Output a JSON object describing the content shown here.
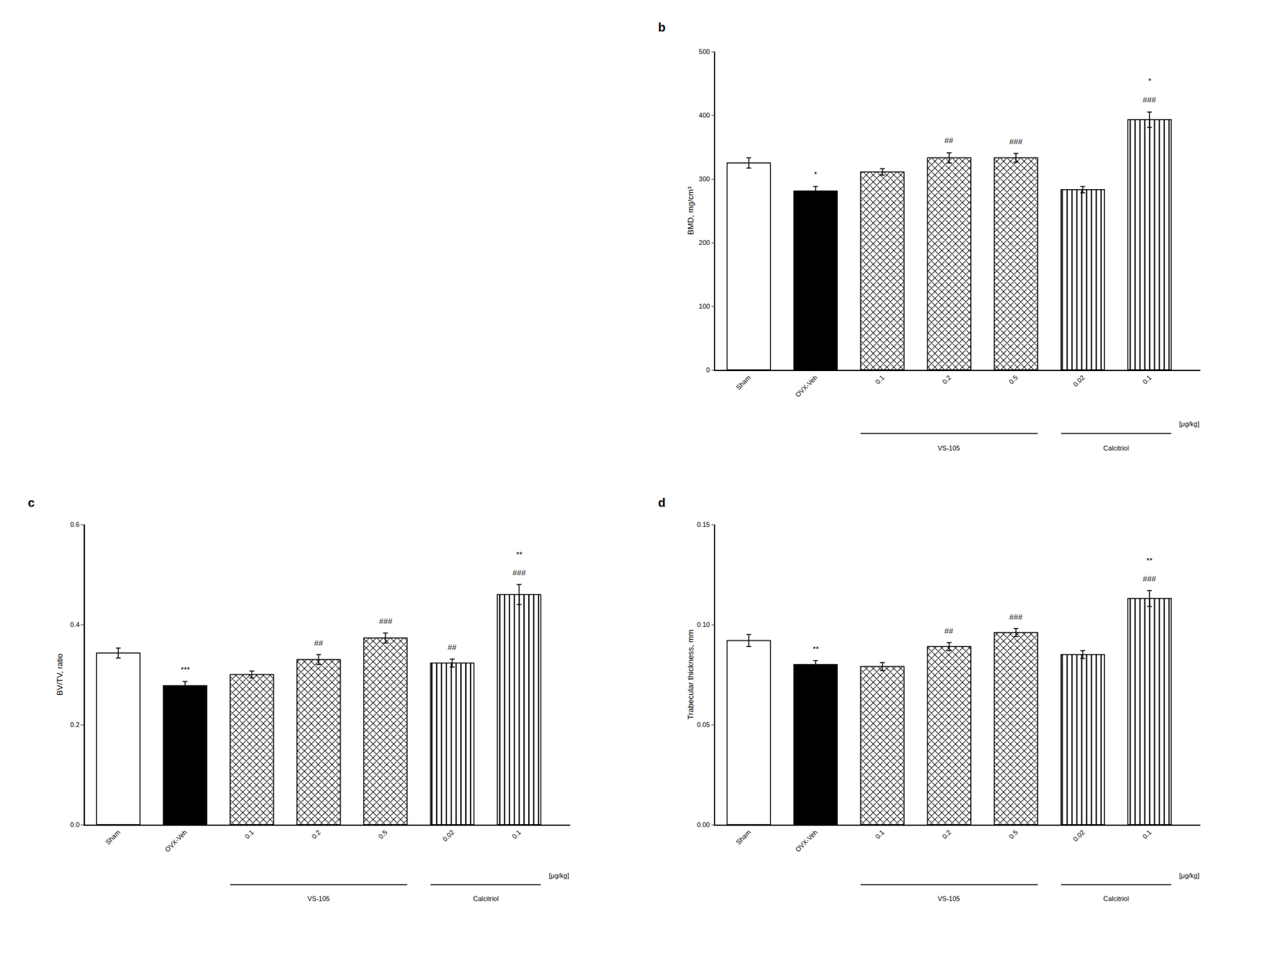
{
  "chart_data": [
    {
      "type": "bar",
      "panel_label": "b",
      "categories": [
        "Sham",
        "OVX-Veh",
        "0.1",
        "0.2",
        "0.5",
        "0.02",
        "0.1"
      ],
      "series": [
        {
          "color": "#ffffff",
          "marker": "none",
          "values": [
            325,
            null,
            null,
            null,
            null,
            null,
            null
          ],
          "errors": [
            8,
            null,
            null,
            null,
            null,
            null,
            null
          ]
        },
        {
          "color": "#000000",
          "marker": "none",
          "values": [
            null,
            281,
            null,
            null,
            null,
            null,
            null
          ],
          "errors": [
            null,
            7,
            null,
            null,
            null,
            null,
            null
          ]
        },
        {
          "color": "#ffffff",
          "marker": "cross",
          "values": [
            null,
            null,
            311,
            333,
            333,
            null,
            null
          ],
          "errors": [
            null,
            null,
            5,
            8,
            7,
            null,
            null
          ]
        },
        {
          "color": "#ffffff",
          "marker": "vlines",
          "values": [
            null,
            null,
            null,
            null,
            null,
            283,
            393
          ],
          "errors": [
            null,
            null,
            null,
            null,
            null,
            5,
            12
          ]
        }
      ],
      "ylim": [
        0,
        500
      ],
      "yticks": [
        0,
        100,
        200,
        300,
        400,
        500
      ],
      "ylabel": "BMD, mg/cm³",
      "grid": false,
      "annotations": [
        {
          "x": 1,
          "text": "*"
        },
        {
          "x": 3,
          "text": "##"
        },
        {
          "x": 4,
          "text": "###"
        },
        {
          "x": 6,
          "text": "###"
        },
        {
          "x": 6,
          "text": "*"
        }
      ],
      "group_labels": [
        {
          "text": "VS-105",
          "from": 2,
          "to": 4
        },
        {
          "text": "Calcitriol",
          "from": 5,
          "to": 6
        }
      ],
      "unit_label": "[μg/kg]"
    },
    {
      "type": "bar",
      "panel_label": "c",
      "categories": [
        "Sham",
        "OVX-Veh",
        "0.1",
        "0.2",
        "0.5",
        "0.02",
        "0.1"
      ],
      "series": [
        {
          "color": "#ffffff",
          "marker": "none",
          "values": [
            0.343,
            null,
            null,
            null,
            null,
            null,
            null
          ],
          "errors": [
            0.01,
            null,
            null,
            null,
            null,
            null,
            null
          ]
        },
        {
          "color": "#000000",
          "marker": "none",
          "values": [
            null,
            0.278,
            null,
            null,
            null,
            null,
            null
          ],
          "errors": [
            null,
            0.008,
            null,
            null,
            null,
            null,
            null
          ]
        },
        {
          "color": "#ffffff",
          "marker": "cross",
          "values": [
            null,
            null,
            0.3,
            0.33,
            0.373,
            null,
            null
          ],
          "errors": [
            null,
            null,
            0.007,
            0.01,
            0.01,
            null,
            null
          ]
        },
        {
          "color": "#ffffff",
          "marker": "vlines",
          "values": [
            null,
            null,
            null,
            null,
            null,
            0.323,
            0.46
          ],
          "errors": [
            null,
            null,
            null,
            null,
            null,
            0.008,
            0.02
          ]
        }
      ],
      "ylim": [
        0.0,
        0.6
      ],
      "yticks": [
        {
          "value": 0.0,
          "label": "0.0"
        },
        0.2,
        0.4,
        0.6
      ],
      "ylabel": "BV/TV, ratio",
      "grid": false,
      "annotations": [
        {
          "x": 1,
          "text": "***"
        },
        {
          "x": 3,
          "text": "##"
        },
        {
          "x": 4,
          "text": "###"
        },
        {
          "x": 5,
          "text": "##"
        },
        {
          "x": 6,
          "text": "###"
        },
        {
          "x": 6,
          "text": "**"
        }
      ],
      "group_labels": [
        {
          "text": "VS-105",
          "from": 2,
          "to": 4
        },
        {
          "text": "Calcitriol",
          "from": 5,
          "to": 6
        }
      ],
      "unit_label": "[μg/kg]"
    },
    {
      "type": "bar",
      "panel_label": "d",
      "categories": [
        "Sham",
        "OVX-Veh",
        "0.1",
        "0.2",
        "0.5",
        "0.02",
        "0.1"
      ],
      "series": [
        {
          "color": "#ffffff",
          "marker": "none",
          "values": [
            0.092,
            null,
            null,
            null,
            null,
            null,
            null
          ],
          "errors": [
            0.003,
            null,
            null,
            null,
            null,
            null,
            null
          ]
        },
        {
          "color": "#000000",
          "marker": "none",
          "values": [
            null,
            0.08,
            null,
            null,
            null,
            null,
            null
          ],
          "errors": [
            null,
            0.002,
            null,
            null,
            null,
            null,
            null
          ]
        },
        {
          "color": "#ffffff",
          "marker": "cross",
          "values": [
            null,
            null,
            0.079,
            0.089,
            0.096,
            null,
            null
          ],
          "errors": [
            null,
            null,
            0.002,
            0.002,
            0.002,
            null,
            null
          ]
        },
        {
          "color": "#ffffff",
          "marker": "vlines",
          "values": [
            null,
            null,
            null,
            null,
            null,
            0.085,
            0.113
          ],
          "errors": [
            null,
            null,
            null,
            null,
            null,
            0.002,
            0.004
          ]
        }
      ],
      "ylim": [
        0.0,
        0.15
      ],
      "yticks": [
        {
          "value": 0.0,
          "label": "0.00"
        },
        0.05,
        {
          "value": 0.1,
          "label": "0.10"
        },
        0.15
      ],
      "ylabel": "Trabecular thickness, mm",
      "grid": false,
      "annotations": [
        {
          "x": 1,
          "text": "**"
        },
        {
          "x": 3,
          "text": "##"
        },
        {
          "x": 4,
          "text": "###"
        },
        {
          "x": 6,
          "text": "###"
        },
        {
          "x": 6,
          "text": "**"
        }
      ],
      "group_labels": [
        {
          "text": "VS-105",
          "from": 2,
          "to": 4
        },
        {
          "text": "Calcitriol",
          "from": 5,
          "to": 6
        }
      ],
      "unit_label": "[μg/kg]"
    }
  ]
}
